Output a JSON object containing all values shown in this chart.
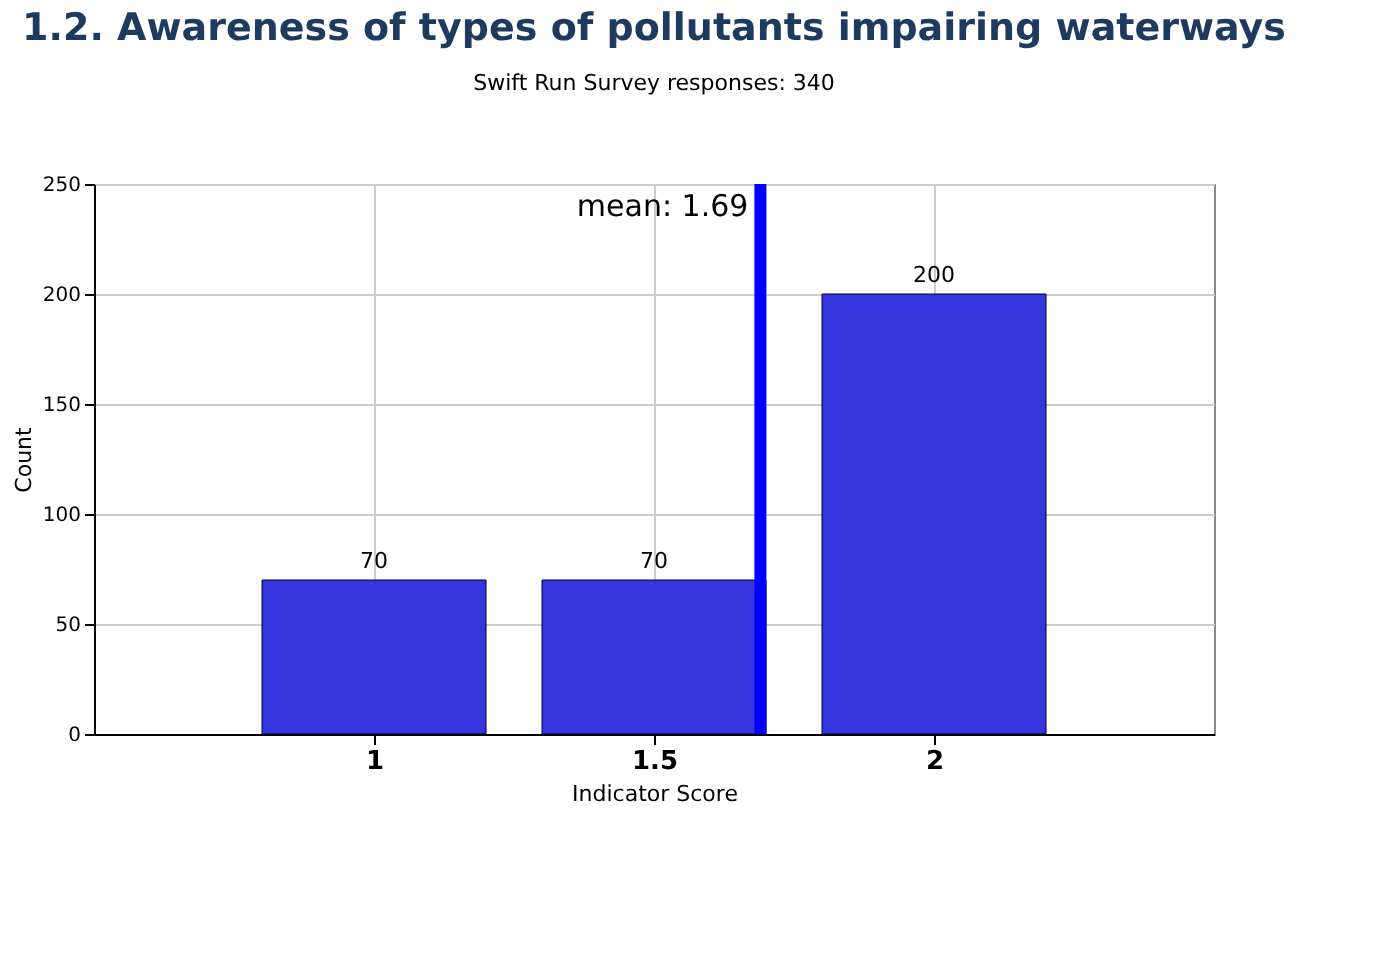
{
  "chart_data": {
    "type": "bar",
    "title": "1.2. Awareness of types of pollutants impairing waterways",
    "subtitle": "Swift Run Survey responses: 340",
    "xlabel": "Indicator Score",
    "ylabel": "Count",
    "x": [
      1,
      1.5,
      2
    ],
    "values": [
      70,
      70,
      200
    ],
    "color": "#3535e0",
    "xlim": [
      0.5,
      2.5
    ],
    "xticks": [
      1,
      1.5,
      2
    ],
    "ylim": [
      0,
      250
    ],
    "yticks": [
      0,
      50,
      100,
      150,
      200,
      250
    ],
    "grid": true,
    "data_labels": true,
    "ref_lines": [
      {
        "axis": "x",
        "value": 1.69,
        "label": "mean: 1.69",
        "color": "#0000ff"
      }
    ]
  }
}
